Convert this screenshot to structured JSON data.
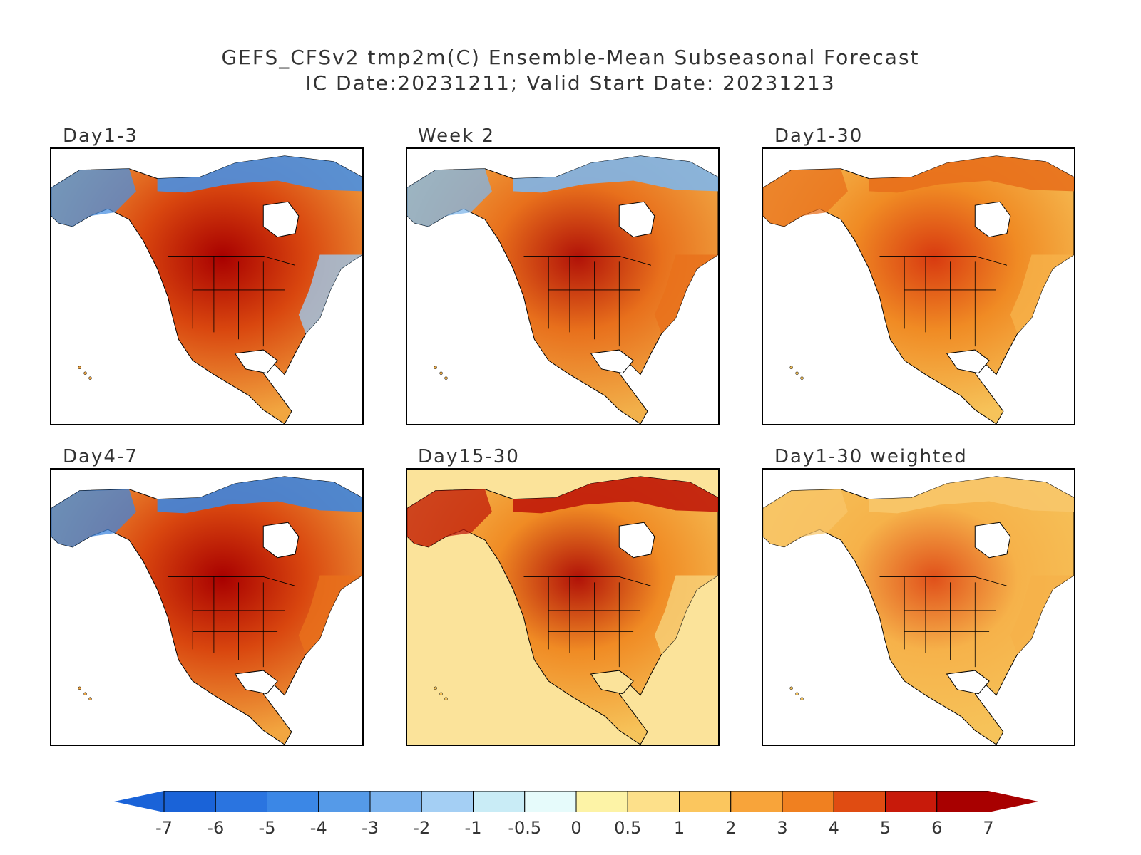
{
  "title": {
    "line1": "GEFS_CFSv2 tmp2m(C) Ensemble-Mean Subseasonal Forecast",
    "line2": "IC Date:20231211; Valid Start Date: 20231213"
  },
  "panels": [
    {
      "label": "Day1-3",
      "colors": {
        "land": "#d9470f",
        "center": "#a80000",
        "north": "#4a90e2",
        "south": "#f2a640",
        "east": "#9ec9ec",
        "ocean": "#ffffff"
      }
    },
    {
      "label": "Week 2",
      "colors": {
        "land": "#e8701c",
        "center": "#b11208",
        "north": "#7fb6ea",
        "south": "#f2b04a",
        "east": "#e8701c",
        "ocean": "#ffffff"
      }
    },
    {
      "label": "Day1-30",
      "colors": {
        "land": "#f08b24",
        "center": "#d83a10",
        "north": "#e8701c",
        "south": "#f6c35a",
        "east": "#f6b24a",
        "ocean": "#ffffff"
      }
    },
    {
      "label": "Day4-7",
      "colors": {
        "land": "#d9470f",
        "center": "#a80000",
        "north": "#3f86de",
        "south": "#f2a640",
        "east": "#e8701c",
        "ocean": "#ffffff"
      }
    },
    {
      "label": "Day15-30",
      "colors": {
        "land": "#f08b24",
        "center": "#b11208",
        "north": "#c01a0a",
        "south": "#f6c35a",
        "east": "#f8d27a",
        "ocean": "#fbe39a"
      }
    },
    {
      "label": "Day1-30 weighted",
      "colors": {
        "land": "#f6b24a",
        "center": "#e0501a",
        "north": "#f8c66a",
        "south": "#f6c35a",
        "east": "#f6b24a",
        "ocean": "#ffffff"
      }
    }
  ],
  "legend": {
    "labels": [
      "-7",
      "-6",
      "-5",
      "-4",
      "-3",
      "-2",
      "-1",
      "-0.5",
      "0",
      "0.5",
      "1",
      "2",
      "3",
      "4",
      "5",
      "6",
      "7"
    ],
    "colors": [
      "#1a63d8",
      "#2a74e0",
      "#3b87e6",
      "#559ae8",
      "#7bb3ee",
      "#a4cff4",
      "#c9ecf6",
      "#e6fbfb",
      "#fdf3a6",
      "#fde08a",
      "#fbc65e",
      "#f8a43a",
      "#f08020",
      "#e04c12",
      "#c81a0a",
      "#a80000"
    ],
    "low_color": "#1a63d8",
    "high_color": "#a80000"
  }
}
